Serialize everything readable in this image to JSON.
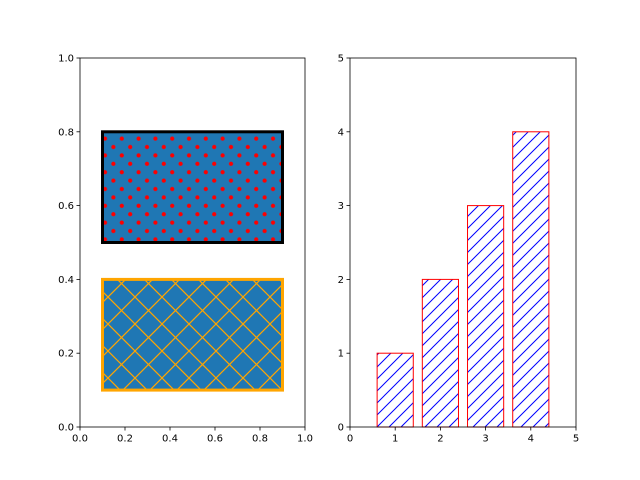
{
  "chart_data": [
    {
      "type": "patches",
      "title": "",
      "xlabel": "",
      "ylabel": "",
      "xlim": [
        0,
        1
      ],
      "ylim": [
        0,
        1
      ],
      "xticks": [
        "0.0",
        "0.2",
        "0.4",
        "0.6",
        "0.8",
        "1.0"
      ],
      "yticks": [
        "0.0",
        "0.2",
        "0.4",
        "0.6",
        "0.8",
        "1.0"
      ],
      "rectangles": [
        {
          "x": 0.1,
          "y": 0.1,
          "width": 0.8,
          "height": 0.3,
          "facecolor": "#1f77b4",
          "edgecolor": "#ffa500",
          "hatch": "crosshatch-diagonal",
          "hatchcolor": "#ffa500"
        },
        {
          "x": 0.1,
          "y": 0.5,
          "width": 0.8,
          "height": 0.3,
          "facecolor": "#1f77b4",
          "edgecolor": "#000000",
          "hatch": "dots",
          "hatchcolor": "#ff0000"
        }
      ]
    },
    {
      "type": "bar",
      "title": "",
      "xlabel": "",
      "ylabel": "",
      "xlim": [
        0,
        5
      ],
      "ylim": [
        0,
        5
      ],
      "xticks": [
        "0",
        "1",
        "2",
        "3",
        "4",
        "5"
      ],
      "yticks": [
        "0",
        "1",
        "2",
        "3",
        "4",
        "5"
      ],
      "categories": [
        1,
        2,
        3,
        4
      ],
      "values": [
        1,
        2,
        3,
        4
      ],
      "bar_width": 0.8,
      "facecolor": "#ffffff",
      "edgecolor": "#ff0000",
      "hatch": "forward-diagonal",
      "hatchcolor": "#0000ff"
    }
  ]
}
